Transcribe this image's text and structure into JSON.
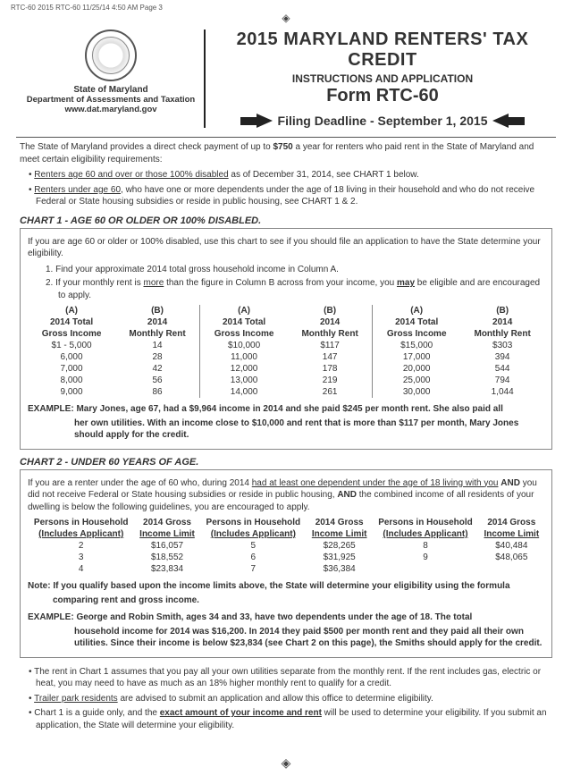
{
  "header": {
    "pageinfo": "RTC-60 2015 RTC-60  11/25/14  4:50 AM  Page 3"
  },
  "left": {
    "state": "State of Maryland",
    "dept": "Department of Assessments and Taxation",
    "url": "www.dat.maryland.gov"
  },
  "titles": {
    "t1": "2015 MARYLAND RENTERS' TAX CREDIT",
    "t2": "INSTRUCTIONS AND APPLICATION",
    "t3": "Form RTC-60",
    "deadline": "Filing Deadline - September 1, 2015"
  },
  "intro": {
    "p1a": "The State of Maryland provides a direct check payment of up to ",
    "p1b": "$750",
    "p1c": " a year for renters who paid rent in the State of Maryland and meet certain eligibility requirements:",
    "b1a": "Renters age 60 and over or those 100% disabled",
    "b1b": " as of December 31, 2014, see CHART 1 below.",
    "b2a": "Renters under age 60",
    "b2b": ", who have one or more dependents under the age of 18 living in their household and who do not receive Federal or State housing subsidies or reside in public housing, see CHART 1 & 2."
  },
  "chart1": {
    "title": "CHART 1 - AGE 60 OR OLDER OR 100% DISABLED.",
    "intro": "If you are age 60 or older or 100% disabled, use this chart to see if you should file an application to have the State determine your eligibility.",
    "n1": "1. Find your approximate 2014 total gross household income in Column A.",
    "n2a": "2. If your monthly rent is ",
    "n2u": "more",
    "n2b": " than the figure in Column B across from your income, you ",
    "n2bu": "may",
    "n2c": " be eligible and are encouraged to apply.",
    "hA": "(A)",
    "hA2": "2014 Total",
    "hA3": "Gross Income",
    "hB": "(B)",
    "hB2": "2014",
    "hB3": "Monthly Rent",
    "rows1": [
      [
        "$1 - 5,000",
        "14"
      ],
      [
        "6,000",
        "28"
      ],
      [
        "7,000",
        "42"
      ],
      [
        "8,000",
        "56"
      ],
      [
        "9,000",
        "86"
      ]
    ],
    "rows2": [
      [
        "$10,000",
        "$117"
      ],
      [
        "11,000",
        "147"
      ],
      [
        "12,000",
        "178"
      ],
      [
        "13,000",
        "219"
      ],
      [
        "14,000",
        "261"
      ]
    ],
    "rows3": [
      [
        "$15,000",
        "$303"
      ],
      [
        "17,000",
        "394"
      ],
      [
        "20,000",
        "544"
      ],
      [
        "25,000",
        "794"
      ],
      [
        "30,000",
        "1,044"
      ]
    ],
    "ex1": "EXAMPLE: Mary Jones, age 67, had a $9,964 income in 2014 and she paid $245 per month rent. She also paid all",
    "ex2": "her own utilities. With an income close to $10,000 and rent that is more than $117 per month, Mary Jones should apply for the credit."
  },
  "chart2": {
    "title": "CHART 2 - UNDER 60 YEARS OF AGE.",
    "p1a": "If you are a renter under the age of 60 who, during 2014 ",
    "p1u": "had at least one dependent under the age of 18 living with you",
    "p1b": " ",
    "p1and1": "AND",
    "p1c": " you did not receive Federal or State housing subsidies or reside in public housing, ",
    "p1and2": "AND",
    "p1d": " the combined income of all residents of your dwelling is below the following guidelines, you are encouraged to apply.",
    "hP": "Persons in Household",
    "hPu": "(Includes Applicant)",
    "hG": "2014 Gross",
    "hGu": "Income Limit",
    "rows1": [
      [
        "2",
        "$16,057"
      ],
      [
        "3",
        "$18,552"
      ],
      [
        "4",
        "$23,834"
      ]
    ],
    "rows2": [
      [
        "5",
        "$28,265"
      ],
      [
        "6",
        "$31,925"
      ],
      [
        "7",
        "$36,384"
      ]
    ],
    "rows3": [
      [
        "8",
        "$40,484"
      ],
      [
        "9",
        "$48,065"
      ]
    ],
    "note1": "Note: If you qualify based upon the income limits above, the State will determine your eligibility using the formula",
    "note2": "comparing rent and gross income.",
    "ex1": "EXAMPLE: George and Robin Smith, ages 34 and 33, have two dependents under the age of 18. The total",
    "ex2": "household income for 2014 was $16,200. In 2014 they paid $500 per month rent and they paid all their own utilities. Since their income is below $23,834 (see Chart 2 on this page), the Smiths should apply for the credit."
  },
  "footnotes": {
    "f1": "The rent in Chart 1 assumes that you pay all your own utilities separate from the monthly rent. If the rent includes gas, electric or heat, you may need to have as much as an 18% higher monthly rent to qualify for a credit.",
    "f2a": "Trailer park residents",
    "f2b": " are advised to submit an application and allow this office to determine eligibility.",
    "f3a": "Chart 1 is a guide only, and the ",
    "f3u": "exact amount of your income and rent",
    "f3b": " will be used to determine your eligibility. If you submit an application, the State will determine your eligibility."
  }
}
